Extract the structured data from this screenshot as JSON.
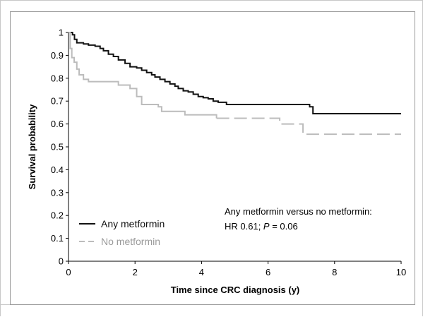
{
  "chart_data": {
    "type": "line",
    "xlabel": "Time since CRC diagnosis (y)",
    "ylabel": "Survival probability",
    "xlim": [
      0,
      10
    ],
    "ylim": [
      0,
      1
    ],
    "x_ticks": [
      "0",
      "2",
      "4",
      "6",
      "8",
      "10"
    ],
    "y_ticks": [
      "0",
      "0.1",
      "0.2",
      "0.3",
      "0.4",
      "0.5",
      "0.6",
      "0.7",
      "0.8",
      "0.9",
      "1"
    ],
    "step": true,
    "grid": false,
    "legend_position": "bottom-left",
    "series": [
      {
        "name": "Any metformin",
        "color": "#111111",
        "dash": "solid",
        "points": [
          [
            0,
            1
          ],
          [
            0.12,
            0.99
          ],
          [
            0.18,
            0.97
          ],
          [
            0.25,
            0.955
          ],
          [
            0.45,
            0.95
          ],
          [
            0.6,
            0.945
          ],
          [
            0.8,
            0.94
          ],
          [
            0.95,
            0.93
          ],
          [
            1.05,
            0.92
          ],
          [
            1.2,
            0.905
          ],
          [
            1.35,
            0.895
          ],
          [
            1.5,
            0.88
          ],
          [
            1.7,
            0.865
          ],
          [
            1.85,
            0.85
          ],
          [
            2.05,
            0.845
          ],
          [
            2.2,
            0.835
          ],
          [
            2.35,
            0.825
          ],
          [
            2.5,
            0.815
          ],
          [
            2.6,
            0.805
          ],
          [
            2.75,
            0.795
          ],
          [
            2.9,
            0.785
          ],
          [
            3.05,
            0.775
          ],
          [
            3.2,
            0.765
          ],
          [
            3.3,
            0.755
          ],
          [
            3.45,
            0.745
          ],
          [
            3.6,
            0.74
          ],
          [
            3.75,
            0.73
          ],
          [
            3.9,
            0.72
          ],
          [
            4.05,
            0.715
          ],
          [
            4.2,
            0.71
          ],
          [
            4.35,
            0.7
          ],
          [
            4.5,
            0.695
          ],
          [
            4.75,
            0.685
          ],
          [
            7.25,
            0.675
          ],
          [
            7.35,
            0.645
          ],
          [
            10,
            0.645
          ]
        ]
      },
      {
        "name": "No metformin",
        "color": "#bcbcbc",
        "dash": "solid-then-dashed",
        "points": [
          [
            0,
            1
          ],
          [
            0.05,
            0.93
          ],
          [
            0.1,
            0.89
          ],
          [
            0.17,
            0.87
          ],
          [
            0.25,
            0.84
          ],
          [
            0.32,
            0.815
          ],
          [
            0.45,
            0.795
          ],
          [
            0.6,
            0.785
          ],
          [
            1.2,
            0.785
          ],
          [
            1.5,
            0.77
          ],
          [
            1.85,
            0.755
          ],
          [
            2.05,
            0.72
          ],
          [
            2.2,
            0.685
          ],
          [
            2.7,
            0.675
          ],
          [
            2.8,
            0.655
          ],
          [
            3.5,
            0.64
          ],
          [
            4.45,
            0.625
          ],
          [
            6.35,
            0.6
          ],
          [
            7.05,
            0.555
          ],
          [
            10,
            0.555
          ]
        ]
      }
    ],
    "legend": [
      "Any metformin",
      "No metformin"
    ],
    "annotation": {
      "line1": "Any metformin versus no metformin:",
      "line2_prefix": "HR 0.61; ",
      "line2_p": "P",
      "line2_suffix": " = 0.06"
    }
  }
}
